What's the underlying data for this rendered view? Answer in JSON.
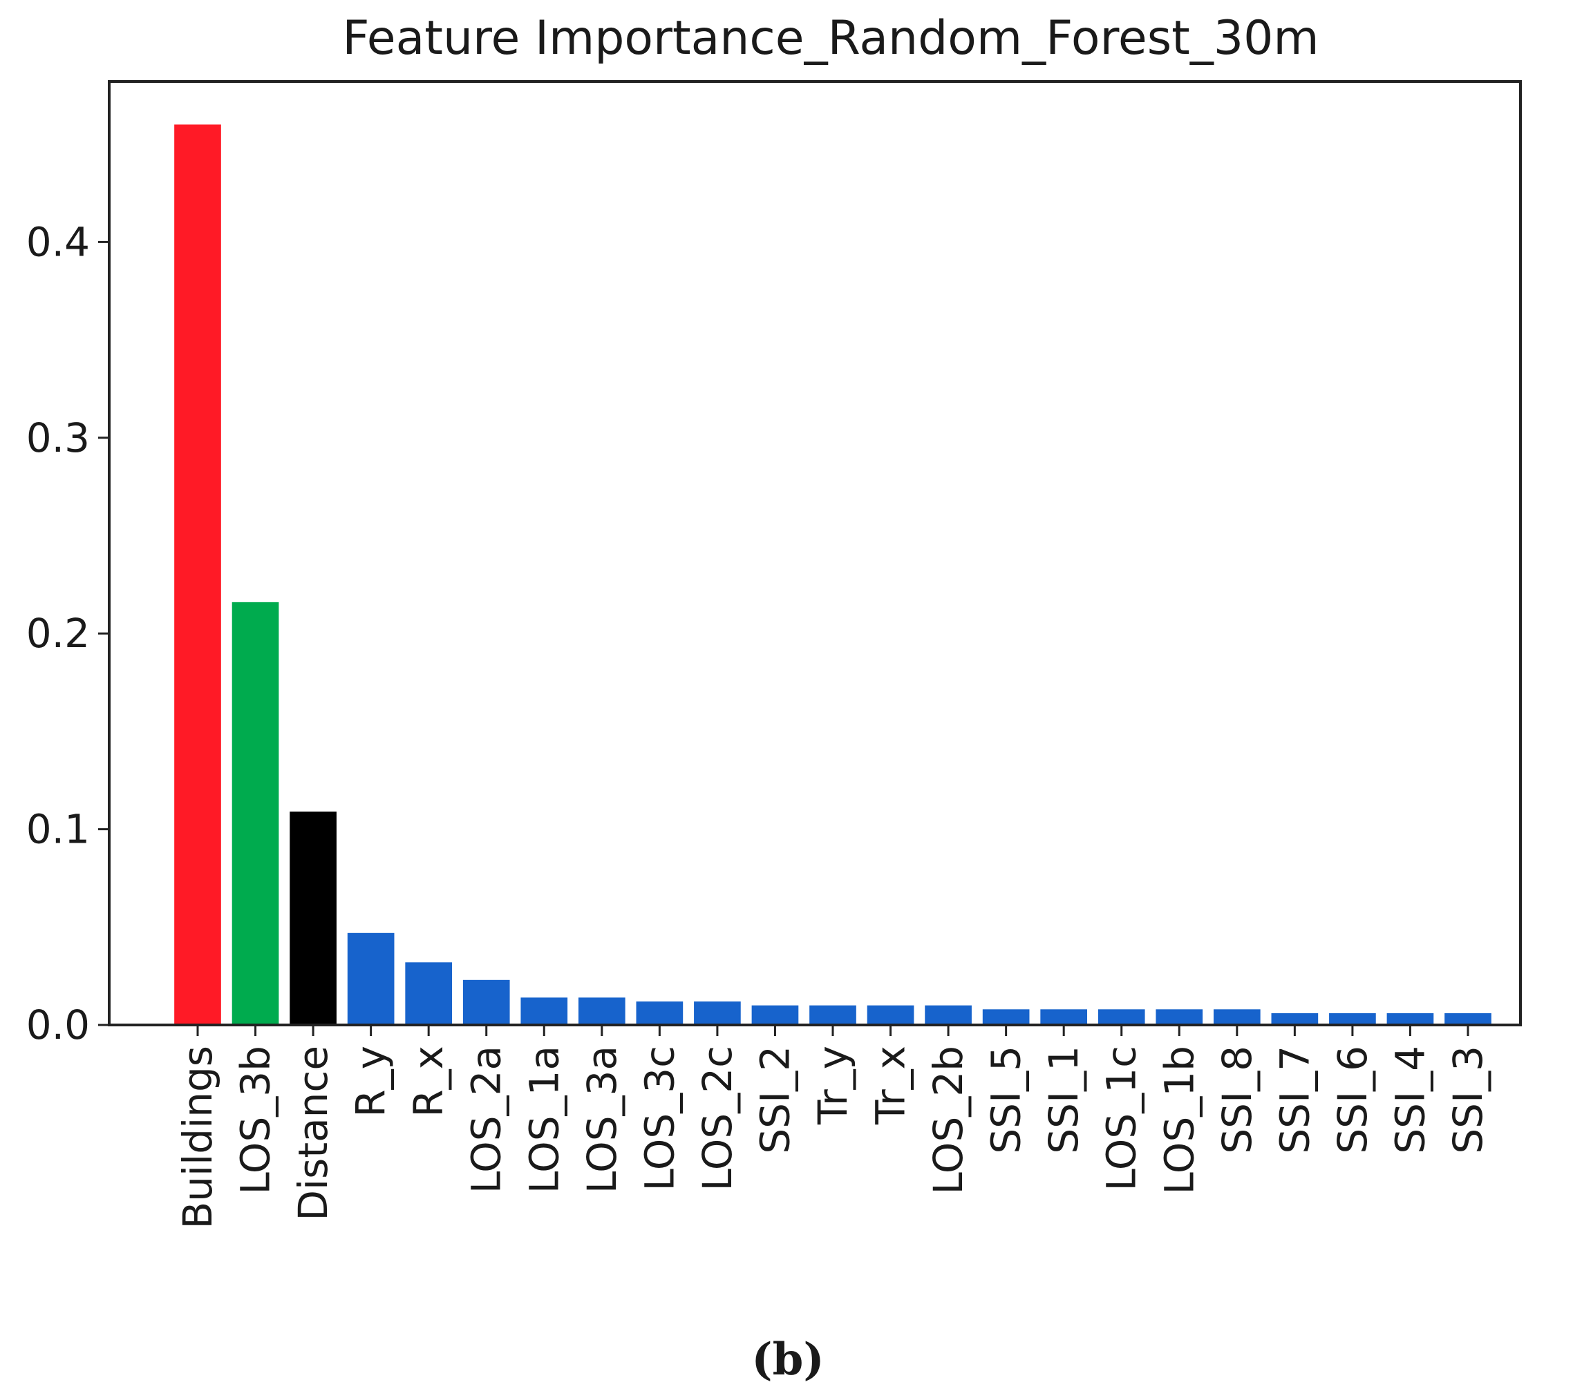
{
  "chart_data": {
    "type": "bar",
    "title": "Feature Importance_Random_Forest_30m",
    "xlabel": "",
    "ylabel": "",
    "categories": [
      "Buildings",
      "LOS_3b",
      "Distance",
      "R_y",
      "R_x",
      "LOS_2a",
      "LOS_1a",
      "LOS_3a",
      "LOS_3c",
      "LOS_2c",
      "SSI_2",
      "Tr_y",
      "Tr_x",
      "LOS_2b",
      "SSI_5",
      "SSI_1",
      "LOS_1c",
      "LOS_1b",
      "SSI_8",
      "SSI_7",
      "SSI_6",
      "SSI_4",
      "SSI_3"
    ],
    "values": [
      0.46,
      0.216,
      0.109,
      0.047,
      0.032,
      0.023,
      0.014,
      0.014,
      0.012,
      0.012,
      0.01,
      0.01,
      0.01,
      0.01,
      0.008,
      0.008,
      0.008,
      0.008,
      0.008,
      0.006,
      0.006,
      0.006,
      0.006
    ],
    "bar_colors": [
      "#ff1a26",
      "#00ab4e",
      "#000000",
      "#1763cc",
      "#1763cc",
      "#1763cc",
      "#1763cc",
      "#1763cc",
      "#1763cc",
      "#1763cc",
      "#1763cc",
      "#1763cc",
      "#1763cc",
      "#1763cc",
      "#1763cc",
      "#1763cc",
      "#1763cc",
      "#1763cc",
      "#1763cc",
      "#1763cc",
      "#1763cc",
      "#1763cc",
      "#1763cc"
    ],
    "yticks": [
      0.0,
      0.1,
      0.2,
      0.3,
      0.4
    ],
    "ytick_labels": [
      "0.0",
      "0.1",
      "0.2",
      "0.3",
      "0.4"
    ],
    "ylim": [
      0,
      0.482
    ],
    "grid": false,
    "legend": "none"
  },
  "caption": "(b)"
}
